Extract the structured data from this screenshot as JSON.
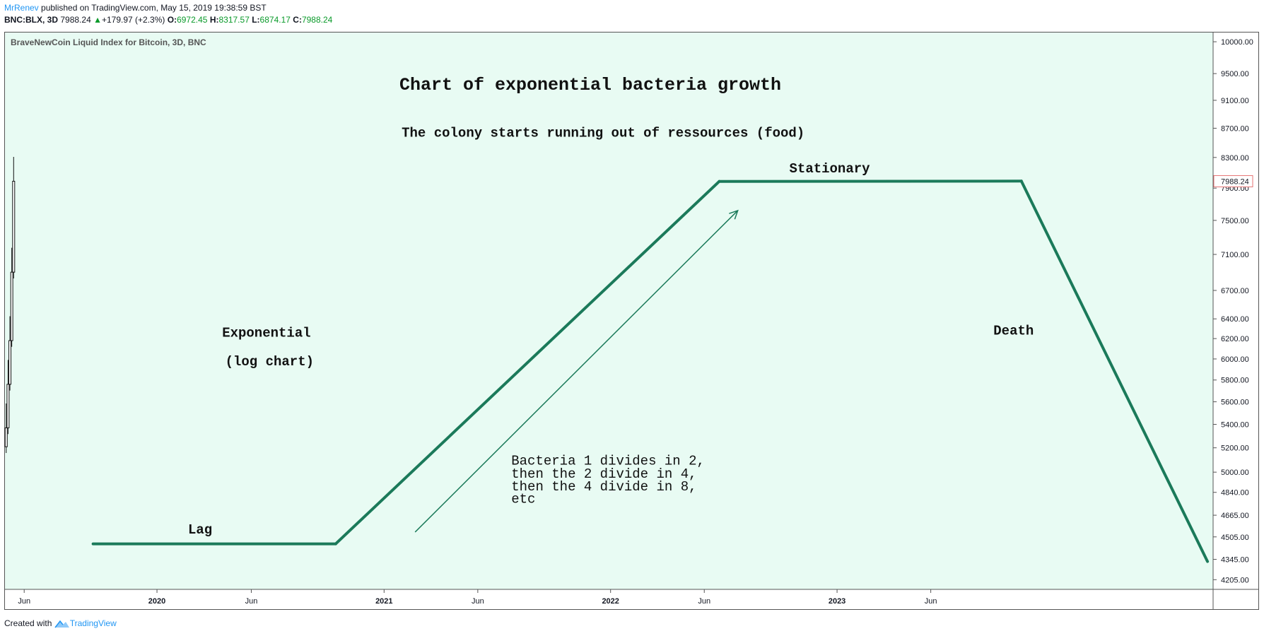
{
  "header": {
    "author": "MrRenev",
    "published": " published on TradingView.com, May 15, 2019 19:38:59 BST",
    "symbol": "BNC:BLX, 3D",
    "last": "7988.24",
    "change": "+179.97 (+2.3%)",
    "o_label": "O:",
    "o_value": "6972.45",
    "h_label": "H:",
    "h_value": "8317.57",
    "l_label": "L:",
    "l_value": "6874.17",
    "c_label": "C:",
    "c_value": "7988.24"
  },
  "pane_title": "BraveNewCoin Liquid Index for Bitcoin, 3D, BNC",
  "price_tag": "7988.24",
  "footer": {
    "created_with": "Created with",
    "brand": "TradingView"
  },
  "colors": {
    "background": "#e8fbf3",
    "line": "#1b7a5a",
    "axis_text": "#131722"
  },
  "chart_data": {
    "type": "line",
    "title": "Chart of exponential bacteria growth",
    "scale": "log",
    "ylim": [
      4140,
      10150
    ],
    "xlim": [
      "2019-05-01",
      "2024-08-29"
    ],
    "y_ticks": [
      "10000.00",
      "9500.00",
      "9100.00",
      "8700.00",
      "8300.00",
      "7900.00",
      "7500.00",
      "7100.00",
      "6700.00",
      "6400.00",
      "6200.00",
      "6000.00",
      "5800.00",
      "5600.00",
      "5400.00",
      "5200.00",
      "5000.00",
      "4840.00",
      "4665.00",
      "4505.00",
      "4345.00",
      "4205.00"
    ],
    "x_ticks": [
      {
        "label": "Jun",
        "date": "2019-06-01",
        "bold": false
      },
      {
        "label": "2020",
        "date": "2020-01-01",
        "bold": true
      },
      {
        "label": "Jun",
        "date": "2020-06-01",
        "bold": false
      },
      {
        "label": "2021",
        "date": "2021-01-01",
        "bold": true
      },
      {
        "label": "Jun",
        "date": "2021-06-01",
        "bold": false
      },
      {
        "label": "2022",
        "date": "2022-01-01",
        "bold": true
      },
      {
        "label": "Jun",
        "date": "2022-06-01",
        "bold": false
      },
      {
        "label": "2023",
        "date": "2023-01-01",
        "bold": true
      },
      {
        "label": "Jun",
        "date": "2023-06-01",
        "bold": false
      }
    ],
    "series": [
      {
        "x": [
          "2019-09-20",
          "2020-10-15",
          "2022-06-25",
          "2023-10-25",
          "2024-08-20"
        ],
        "y": [
          4455,
          4455,
          7985,
          7990,
          4330
        ]
      }
    ],
    "arrow": {
      "from": {
        "x": "2021-02-20",
        "y": 4540
      },
      "to": {
        "x": "2022-07-25",
        "y": 7620
      }
    },
    "candles": [
      {
        "x": "2019-05-03",
        "y": 5370
      },
      {
        "x": "2019-05-06",
        "y": 5760
      },
      {
        "x": "2019-05-09",
        "y": 6180
      },
      {
        "x": "2019-05-12",
        "y": 6900
      },
      {
        "x": "2019-05-15",
        "y": 7988
      }
    ],
    "annotations": [
      {
        "text": "The colony starts running out of ressources (food)",
        "x": "2021-12-20",
        "y": 8580
      },
      {
        "text": "Stationary",
        "x": "2022-12-20",
        "y": 8100
      },
      {
        "text": "Exponential",
        "x": "2020-04-15",
        "y": 6220
      },
      {
        "text": "(log chart)",
        "x": "2020-04-20",
        "y": 5940
      },
      {
        "text": "Death",
        "x": "2023-09-10",
        "y": 6240
      },
      {
        "text": "Lag",
        "x": "2020-02-20",
        "y": 4530
      },
      {
        "text": "Bacteria 1 divides in 2,",
        "x": "2021-07-25",
        "y": 5060
      },
      {
        "text": "then the 2 divide in 4,",
        "x": "2021-07-25",
        "y": 4955
      },
      {
        "text": "then the 4 divide in 8,",
        "x": "2021-07-25",
        "y": 4855
      },
      {
        "text": "etc",
        "x": "2021-07-25",
        "y": 4760
      }
    ]
  }
}
